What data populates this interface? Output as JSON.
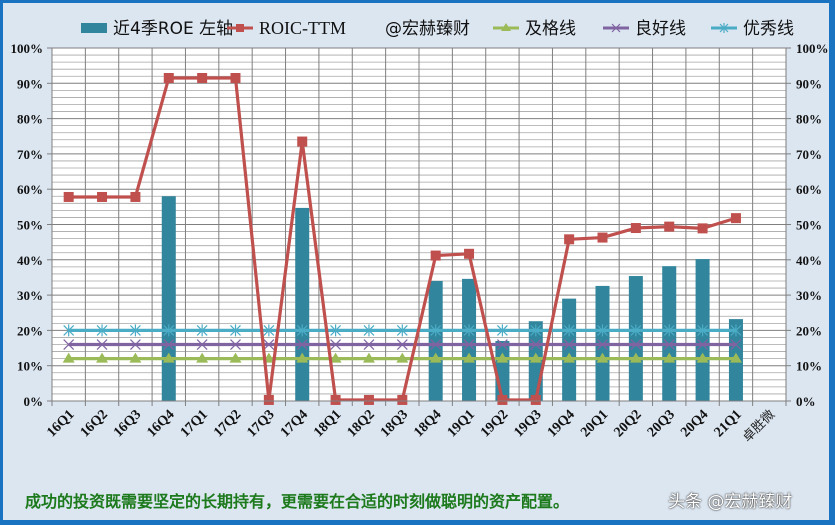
{
  "chart_data": {
    "type": "bar+line",
    "title": "",
    "xlabel": "",
    "ylabel": "",
    "ylim": [
      0,
      100
    ],
    "y2lim": [
      0,
      100
    ],
    "yticks": [
      "0%",
      "10%",
      "20%",
      "30%",
      "40%",
      "50%",
      "60%",
      "70%",
      "80%",
      "90%",
      "100%"
    ],
    "y2ticks": [
      "0%",
      "10%",
      "20%",
      "30%",
      "40%",
      "50%",
      "60%",
      "70%",
      "80%",
      "90%",
      "100%"
    ],
    "grid": true,
    "legend_position": "top",
    "categories": [
      "16Q1",
      "16Q2",
      "16Q3",
      "16Q4",
      "17Q1",
      "17Q2",
      "17Q3",
      "17Q4",
      "18Q1",
      "18Q2",
      "18Q3",
      "18Q4",
      "19Q1",
      "19Q2",
      "19Q3",
      "19Q4",
      "20Q1",
      "20Q2",
      "20Q3",
      "20Q4",
      "21Q1",
      "卓胜微"
    ],
    "series": [
      {
        "name": "近4季ROE 左轴",
        "type": "bar",
        "color": "#31859c",
        "values": [
          null,
          null,
          null,
          58.0,
          null,
          null,
          null,
          54.7,
          null,
          null,
          null,
          34.0,
          34.6,
          17.0,
          22.6,
          29.0,
          32.6,
          35.4,
          38.2,
          40.2,
          23.2,
          null
        ]
      },
      {
        "name": "ROIC-TTM",
        "type": "line",
        "color": "#c0504d",
        "marker": "square",
        "values": [
          57.8,
          57.8,
          57.8,
          91.5,
          91.5,
          91.5,
          0.3,
          73.5,
          0.3,
          0.3,
          0.3,
          41.2,
          41.7,
          0.3,
          0.3,
          45.8,
          46.3,
          49.0,
          49.4,
          48.9,
          51.8,
          null
        ]
      },
      {
        "name": "及格线",
        "type": "line",
        "color": "#9bbb59",
        "marker": "triangle",
        "values": [
          12,
          12,
          12,
          12,
          12,
          12,
          12,
          12,
          12,
          12,
          12,
          12,
          12,
          12,
          12,
          12,
          12,
          12,
          12,
          12,
          12,
          null
        ]
      },
      {
        "name": "良好线",
        "type": "line",
        "color": "#8064a2",
        "marker": "x",
        "values": [
          16,
          16,
          16,
          16,
          16,
          16,
          16,
          16,
          16,
          16,
          16,
          16,
          16,
          16,
          16,
          16,
          16,
          16,
          16,
          16,
          16,
          null
        ]
      },
      {
        "name": "优秀线",
        "type": "line",
        "color": "#4bacc6",
        "marker": "asterisk",
        "values": [
          20,
          20,
          20,
          20,
          20,
          20,
          20,
          20,
          20,
          20,
          20,
          20,
          20,
          20,
          20,
          20,
          20,
          20,
          20,
          20,
          20,
          null
        ]
      }
    ],
    "annotations": [
      "@宏赫臻财"
    ]
  },
  "legend": {
    "items": [
      {
        "label": "近4季ROE 左轴",
        "color": "#31859c"
      },
      {
        "label": "ROIC-TTM",
        "color": "#c0504d"
      },
      {
        "label": "@宏赫臻财",
        "color": ""
      },
      {
        "label": "及格线",
        "color": "#9bbb59"
      },
      {
        "label": "良好线",
        "color": "#8064a2"
      },
      {
        "label": "优秀线",
        "color": "#4bacc6"
      }
    ]
  },
  "footer": {
    "caption": "成功的投资既需要坚定的长期持有，更需要在合适的时刻做聪明的资产配置。",
    "watermark": "头条 @宏赫臻财"
  },
  "colors": {
    "background": "#dce6f1",
    "frame": "#1a73c0",
    "plot_bg": "#ffffff",
    "grid": "#808080",
    "caption": "#1c7a1c"
  }
}
